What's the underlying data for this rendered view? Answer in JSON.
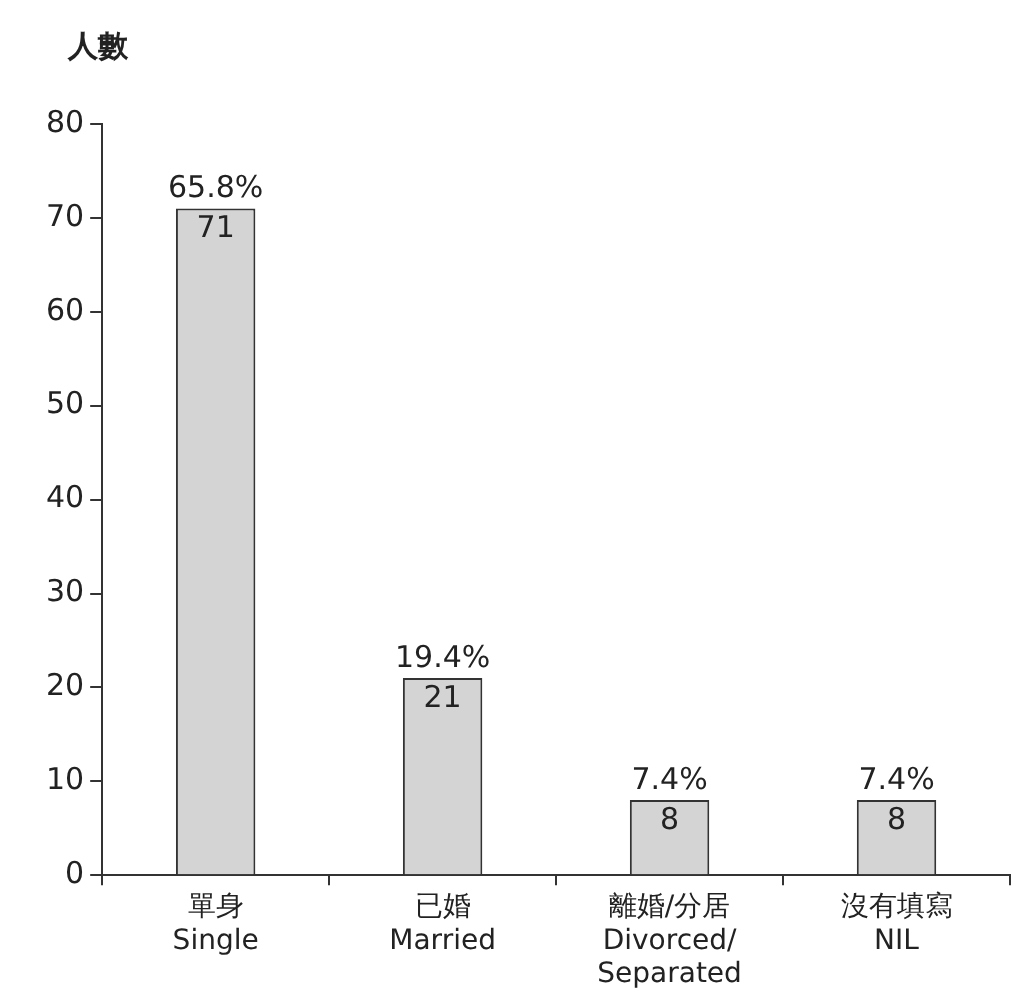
{
  "chart_data": {
    "type": "bar",
    "ylabel": "人數",
    "categories": [
      "單身\nSingle",
      "已婚\nMarried",
      "離婚/分居\nDivorced/\nSeparated",
      "沒有填寫\nNIL"
    ],
    "values": [
      71,
      21,
      8,
      8
    ],
    "color": "#d4d4d4",
    "data_labels": true,
    "ylim": [
      0,
      80
    ],
    "yticks": [
      0,
      10,
      20,
      30,
      40,
      50,
      60,
      70,
      80
    ],
    "grid": false,
    "legend": false,
    "annotations": [
      {
        "text": "65.8%",
        "x": "單身\nSingle",
        "y": 71
      },
      {
        "text": "19.4%",
        "x": "已婚\nMarried",
        "y": 21
      },
      {
        "text": "7.4%",
        "x": "離婚/分居\nDivorced/\nSeparated",
        "y": 8
      },
      {
        "text": "7.4%",
        "x": "沒有填寫\nNIL",
        "y": 8
      }
    ]
  }
}
